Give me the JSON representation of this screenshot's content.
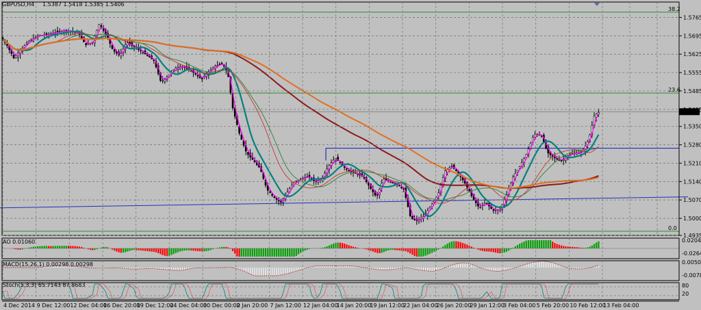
{
  "header": {
    "symbol": "GBPUSD,H4",
    "ohlc": "1.5387 1.5418 1.5385 1.5406"
  },
  "colors": {
    "background": "#c0c0c0",
    "grid": "#7a7a7a",
    "candle": "#000000",
    "ma_fast": "#ff00ff",
    "ma_mid": "#008080",
    "ma_thin_red": "#c83232",
    "ma_thin_green": "#2e7d32",
    "ma_long_brown": "#8b1a1a",
    "ma_long_orange": "#e07020",
    "fib_line": "#2e8b2e",
    "trend_line": "#1f2fbf",
    "ao_up": "#00a000",
    "ao_down": "#ff0000",
    "macd": "#ffffff",
    "macd_signal": "#b22222"
  },
  "chart_data": {
    "type": "candlestick",
    "title": "GBPUSD,H4",
    "price_axis": {
      "ticks": [
        "1.5765",
        "1.5695",
        "1.5625",
        "1.5555",
        "1.5485",
        "1.5415",
        "1.5350",
        "1.5280",
        "1.5210",
        "1.5140",
        "1.5070",
        "1.5000",
        "1.4935"
      ],
      "current_price": "1.5406",
      "ylim": [
        1.4935,
        1.58
      ]
    },
    "time_axis": {
      "ticks": [
        "4 Dec 2014",
        "9 Dec 12:00",
        "12 Dec 04:00",
        "16 Dec 20:00",
        "19 Dec 12:00",
        "24 Dec 04:00",
        "30 Dec 00:00",
        "2 Jan 20:00",
        "7 Jan 12:00",
        "12 Jan 04:00",
        "14 Jan 20:00",
        "19 Jan 12:00",
        "22 Jan 04:00",
        "26 Jan 20:00",
        "29 Jan 12:00",
        "3 Feb 04:00",
        "5 Feb 20:00",
        "10 Feb 12:00",
        "13 Feb 04:00"
      ]
    },
    "price_path": [
      [
        0,
        1.569
      ],
      [
        10,
        1.566
      ],
      [
        20,
        1.561
      ],
      [
        30,
        1.564
      ],
      [
        40,
        1.567
      ],
      [
        55,
        1.5695
      ],
      [
        70,
        1.57
      ],
      [
        85,
        1.571
      ],
      [
        100,
        1.5715
      ],
      [
        115,
        1.5705
      ],
      [
        125,
        1.566
      ],
      [
        135,
        1.567
      ],
      [
        145,
        1.574
      ],
      [
        155,
        1.57
      ],
      [
        165,
        1.564
      ],
      [
        175,
        1.562
      ],
      [
        185,
        1.567
      ],
      [
        195,
        1.5655
      ],
      [
        210,
        1.563
      ],
      [
        225,
        1.56
      ],
      [
        235,
        1.552
      ],
      [
        245,
        1.554
      ],
      [
        255,
        1.557
      ],
      [
        265,
        1.558
      ],
      [
        280,
        1.556
      ],
      [
        295,
        1.553
      ],
      [
        305,
        1.556
      ],
      [
        315,
        1.558
      ],
      [
        325,
        1.559
      ],
      [
        333,
        1.555
      ],
      [
        340,
        1.542
      ],
      [
        350,
        1.532
      ],
      [
        360,
        1.525
      ],
      [
        370,
        1.522
      ],
      [
        380,
        1.519
      ],
      [
        390,
        1.511
      ],
      [
        400,
        1.508
      ],
      [
        410,
        1.506
      ],
      [
        420,
        1.51
      ],
      [
        430,
        1.514
      ],
      [
        440,
        1.515
      ],
      [
        450,
        1.516
      ],
      [
        460,
        1.514
      ],
      [
        470,
        1.515
      ],
      [
        480,
        1.52
      ],
      [
        490,
        1.523
      ],
      [
        500,
        1.52
      ],
      [
        510,
        1.518
      ],
      [
        520,
        1.517
      ],
      [
        530,
        1.516
      ],
      [
        540,
        1.512
      ],
      [
        550,
        1.508
      ],
      [
        560,
        1.515
      ],
      [
        570,
        1.514
      ],
      [
        580,
        1.513
      ],
      [
        590,
        1.511
      ],
      [
        600,
        1.5
      ],
      [
        610,
        1.499
      ],
      [
        620,
        1.501
      ],
      [
        630,
        1.505
      ],
      [
        640,
        1.509
      ],
      [
        650,
        1.518
      ],
      [
        660,
        1.52
      ],
      [
        670,
        1.517
      ],
      [
        680,
        1.513
      ],
      [
        690,
        1.508
      ],
      [
        700,
        1.504
      ],
      [
        710,
        1.506
      ],
      [
        720,
        1.503
      ],
      [
        730,
        1.503
      ],
      [
        740,
        1.509
      ],
      [
        750,
        1.516
      ],
      [
        760,
        1.52
      ],
      [
        770,
        1.525
      ],
      [
        780,
        1.532
      ],
      [
        790,
        1.532
      ],
      [
        800,
        1.525
      ],
      [
        810,
        1.523
      ],
      [
        820,
        1.522
      ],
      [
        830,
        1.524
      ],
      [
        840,
        1.525
      ],
      [
        850,
        1.525
      ],
      [
        860,
        1.53
      ],
      [
        868,
        1.539
      ],
      [
        876,
        1.5406
      ]
    ],
    "horizontal_levels": [
      {
        "label": "38.2",
        "price": 1.5785
      },
      {
        "label": "23.6",
        "price": 1.5477
      },
      {
        "label": "0.0",
        "price": 1.4951
      }
    ],
    "trend_line": {
      "points": [
        [
          0,
          1.504
        ],
        [
          1005,
          1.5082
        ]
      ]
    },
    "resistance_line": {
      "points": [
        [
          476,
          1.5267
        ],
        [
          992,
          1.5267
        ]
      ]
    },
    "indicators": [
      {
        "name": "AO",
        "label": "AO 0.01060",
        "ticks": [
          "0.02047",
          "-0.02641"
        ]
      },
      {
        "name": "MACD",
        "label": "MACD(15,26,1) 0.00298 0.00298",
        "ticks": [
          "0.00505",
          "-0.00786"
        ]
      },
      {
        "name": "Stoch",
        "label": "Stoch(5,3,3) 65.7143 87.8683",
        "ticks": [
          "80",
          "20"
        ]
      }
    ]
  }
}
